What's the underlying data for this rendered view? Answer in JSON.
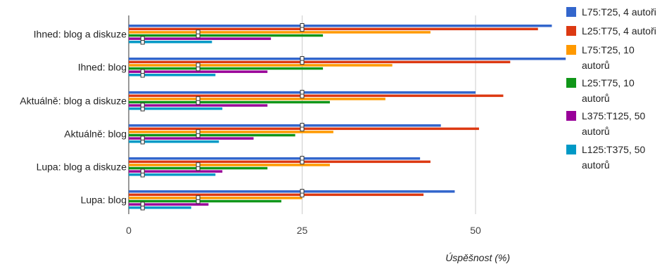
{
  "chart_data": {
    "type": "bar",
    "orientation": "horizontal",
    "categories": [
      "Ihned: blog a diskuze",
      "Ihned: blog",
      "Aktuálně: blog a diskuze",
      "Aktuálně: blog",
      "Lupa: blog a diskuze",
      "Lupa: blog"
    ],
    "series": [
      {
        "name": "L75:T25, 4 autoři",
        "color": "#3366cc",
        "values": [
          61,
          63,
          50,
          45,
          42,
          47
        ],
        "marker": [
          25,
          25,
          25,
          25,
          25,
          25
        ]
      },
      {
        "name": "L25:T75, 4 autoři",
        "color": "#dc3912",
        "values": [
          59,
          55,
          54,
          50.5,
          43.5,
          42.5
        ],
        "marker": [
          25,
          25,
          25,
          25,
          25,
          25
        ]
      },
      {
        "name": "L75:T25, 10 autorů",
        "color": "#ff9900",
        "values": [
          43.5,
          38,
          37,
          29.5,
          29,
          25
        ],
        "marker": [
          10,
          10,
          10,
          10,
          10,
          10
        ]
      },
      {
        "name": "L25:T75, 10 autorů",
        "color": "#109618",
        "values": [
          28,
          28,
          29,
          24,
          20,
          22
        ],
        "marker": [
          10,
          10,
          10,
          10,
          10,
          10
        ]
      },
      {
        "name": "L375:T125, 50 autorů",
        "color": "#990099",
        "values": [
          20.5,
          20,
          20,
          18,
          13.5,
          11.5
        ],
        "marker": [
          2,
          2,
          2,
          2,
          2,
          2
        ]
      },
      {
        "name": "L125:T375, 50 autorů",
        "color": "#0099c6",
        "values": [
          12,
          12.5,
          13.5,
          13,
          12.5,
          9
        ],
        "marker": [
          2,
          2,
          2,
          2,
          2,
          2
        ]
      }
    ],
    "xlim": [
      0,
      63
    ],
    "xticks": [
      0,
      25,
      50
    ],
    "xlabel": "Úspěšnost (%)",
    "ylabel": "",
    "title": "",
    "grid": true,
    "legend": "right"
  }
}
